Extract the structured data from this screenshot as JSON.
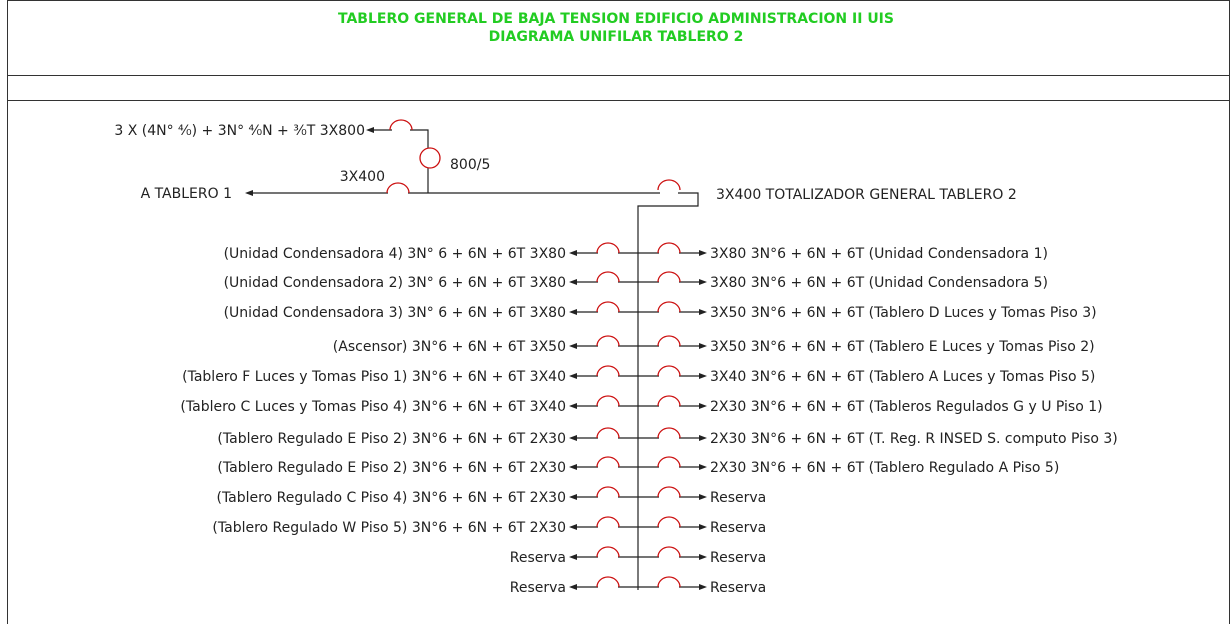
{
  "header": {
    "title": "TABLERO GENERAL DE BAJA TENSION EDIFICIO ADMINISTRACION II UIS",
    "subtitle": "DIAGRAMA UNIFILAR TABLERO 2"
  },
  "feeder": {
    "supply": "3 X (4N° ⁴⁄₀) + 3N° ⁴⁄₀N + ³⁄₀T 3X800",
    "ct": "800/5",
    "tie_breaker": "3X400",
    "tie_label": "A TABLERO 1",
    "main": "3X400 TOTALIZADOR GENERAL TABLERO 2"
  },
  "left_branches": [
    "(Unidad Condensadora 4) 3N° 6 + 6N + 6T 3X80",
    "(Unidad Condensadora 2) 3N° 6 + 6N + 6T 3X80",
    "(Unidad Condensadora 3) 3N° 6 + 6N + 6T 3X80",
    "(Ascensor) 3N°6 + 6N + 6T 3X50",
    "(Tablero F Luces y Tomas Piso 1) 3N°6 + 6N + 6T 3X40",
    "(Tablero C Luces y Tomas Piso 4) 3N°6 + 6N + 6T 3X40",
    "(Tablero Regulado E Piso 2) 3N°6 + 6N + 6T 2X30",
    "(Tablero Regulado E Piso 2) 3N°6 + 6N + 6T 2X30",
    "(Tablero Regulado C Piso 4) 3N°6 + 6N + 6T 2X30",
    "(Tablero Regulado W Piso 5) 3N°6 + 6N + 6T 2X30",
    "Reserva",
    "Reserva"
  ],
  "right_branches": [
    "3X80 3N°6 + 6N + 6T (Unidad Condensadora 1)",
    "3X80 3N°6 + 6N + 6T (Unidad Condensadora 5)",
    "3X50 3N°6 + 6N + 6T (Tablero D Luces y Tomas Piso 3)",
    "3X50 3N°6 + 6N + 6T (Tablero E Luces y Tomas Piso 2)",
    "3X40 3N°6 + 6N + 6T (Tablero A Luces y Tomas Piso 5)",
    "2X30 3N°6 + 6N + 6T (Tableros Regulados G y U Piso 1)",
    "2X30 3N°6 + 6N + 6T (T. Reg. R INSED S. computo Piso 3)",
    "2X30 3N°6 + 6N + 6T (Tablero Regulado A Piso 5)",
    "Reserva",
    "Reserva",
    "Reserva",
    "Reserva"
  ]
}
